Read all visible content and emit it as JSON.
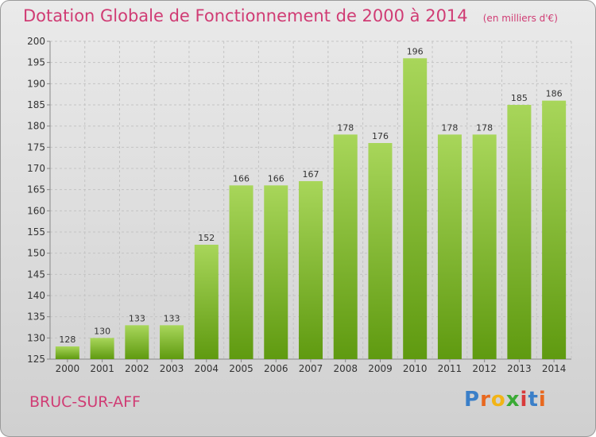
{
  "title": "Dotation Globale de Fonctionnement de 2000 à 2014",
  "unit": "(en milliers d'€)",
  "commune": "BRUC-SUR-AFF",
  "logo": {
    "letters": [
      "P",
      "r",
      "o",
      "x",
      "i",
      "t",
      "i"
    ],
    "colors": [
      "#3a7fc8",
      "#e8681f",
      "#f2b416",
      "#3aaa35",
      "#d83a3a",
      "#3a7fc8",
      "#e8681f"
    ]
  },
  "colors": {
    "title": "#d03c74",
    "bar_top": "#a8d65a",
    "bar_bottom": "#5f9a10"
  },
  "chart_data": {
    "type": "bar",
    "categories": [
      "2000",
      "2001",
      "2002",
      "2003",
      "2004",
      "2005",
      "2006",
      "2007",
      "2008",
      "2009",
      "2010",
      "2011",
      "2012",
      "2013",
      "2014"
    ],
    "values": [
      128,
      130,
      133,
      133,
      152,
      166,
      166,
      167,
      178,
      176,
      196,
      178,
      178,
      185,
      186
    ],
    "ylim": [
      125,
      200
    ],
    "yticks": [
      125,
      130,
      135,
      140,
      145,
      150,
      155,
      160,
      165,
      170,
      175,
      180,
      185,
      190,
      195,
      200
    ],
    "grid": true,
    "xlabel": "",
    "ylabel": ""
  }
}
